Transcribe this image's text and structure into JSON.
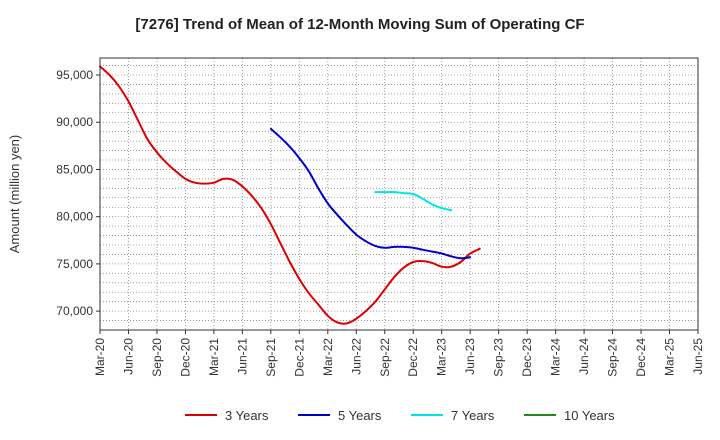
{
  "chart_data": {
    "type": "line",
    "title": "[7276]  Trend of Mean of 12-Month Moving Sum of Operating CF",
    "xlabel": "",
    "ylabel": "Amount (million yen)",
    "ylim": [
      68000,
      96800
    ],
    "yticks": [
      70000,
      75000,
      80000,
      85000,
      90000,
      95000
    ],
    "ytick_labels": [
      "70,000",
      "75,000",
      "80,000",
      "85,000",
      "90,000",
      "95,000"
    ],
    "x_index_range": [
      0,
      63
    ],
    "xticks": [
      0,
      3,
      6,
      9,
      12,
      15,
      18,
      21,
      24,
      27,
      30,
      33,
      36,
      39,
      42,
      45,
      48,
      51,
      54,
      57,
      60,
      63
    ],
    "xtick_labels": [
      "Mar-20",
      "Jun-20",
      "Sep-20",
      "Dec-20",
      "Mar-21",
      "Jun-21",
      "Sep-21",
      "Dec-21",
      "Mar-22",
      "Jun-22",
      "Sep-22",
      "Dec-22",
      "Mar-23",
      "Jun-23",
      "Sep-23",
      "Dec-23",
      "Mar-24",
      "Jun-24",
      "Sep-24",
      "Dec-24",
      "Mar-25",
      "Jun-25"
    ],
    "grid": true,
    "legend_position": "bottom",
    "series": [
      {
        "name": "3 Years",
        "color": "#dd0000",
        "points": [
          [
            0,
            95900
          ],
          [
            1,
            95000
          ],
          [
            2,
            93800
          ],
          [
            3,
            92200
          ],
          [
            4,
            90200
          ],
          [
            5,
            88200
          ],
          [
            6,
            86800
          ],
          [
            7,
            85700
          ],
          [
            8,
            84800
          ],
          [
            9,
            84000
          ],
          [
            10,
            83600
          ],
          [
            11,
            83500
          ],
          [
            12,
            83600
          ],
          [
            13,
            84000
          ],
          [
            14,
            83900
          ],
          [
            15,
            83200
          ],
          [
            16,
            82200
          ],
          [
            17,
            80900
          ],
          [
            18,
            79200
          ],
          [
            19,
            77200
          ],
          [
            20,
            75200
          ],
          [
            21,
            73400
          ],
          [
            22,
            71900
          ],
          [
            23,
            70700
          ],
          [
            24,
            69500
          ],
          [
            25,
            68800
          ],
          [
            26,
            68700
          ],
          [
            27,
            69200
          ],
          [
            28,
            70000
          ],
          [
            29,
            71000
          ],
          [
            30,
            72300
          ],
          [
            31,
            73600
          ],
          [
            32,
            74600
          ],
          [
            33,
            75200
          ],
          [
            34,
            75300
          ],
          [
            35,
            75100
          ],
          [
            36,
            74700
          ],
          [
            37,
            74700
          ],
          [
            38,
            75200
          ],
          [
            39,
            76100
          ],
          [
            40,
            76600
          ]
        ]
      },
      {
        "name": "5 Years",
        "color": "#0000cc",
        "points": [
          [
            18,
            89300
          ],
          [
            19,
            88400
          ],
          [
            20,
            87400
          ],
          [
            21,
            86200
          ],
          [
            22,
            84800
          ],
          [
            23,
            83000
          ],
          [
            24,
            81400
          ],
          [
            25,
            80200
          ],
          [
            26,
            79100
          ],
          [
            27,
            78100
          ],
          [
            28,
            77400
          ],
          [
            29,
            76900
          ],
          [
            30,
            76700
          ],
          [
            31,
            76800
          ],
          [
            32,
            76800
          ],
          [
            33,
            76700
          ],
          [
            34,
            76500
          ],
          [
            35,
            76300
          ],
          [
            36,
            76100
          ],
          [
            37,
            75800
          ],
          [
            38,
            75600
          ],
          [
            39,
            75700
          ]
        ]
      },
      {
        "name": "7 Years",
        "color": "#00e5e5",
        "points": [
          [
            29,
            82600
          ],
          [
            30,
            82600
          ],
          [
            31,
            82600
          ],
          [
            32,
            82500
          ],
          [
            33,
            82400
          ],
          [
            34,
            81900
          ],
          [
            35,
            81300
          ],
          [
            36,
            80900
          ],
          [
            37,
            80700
          ]
        ]
      },
      {
        "name": "10 Years",
        "color": "#228822",
        "points": []
      }
    ]
  }
}
